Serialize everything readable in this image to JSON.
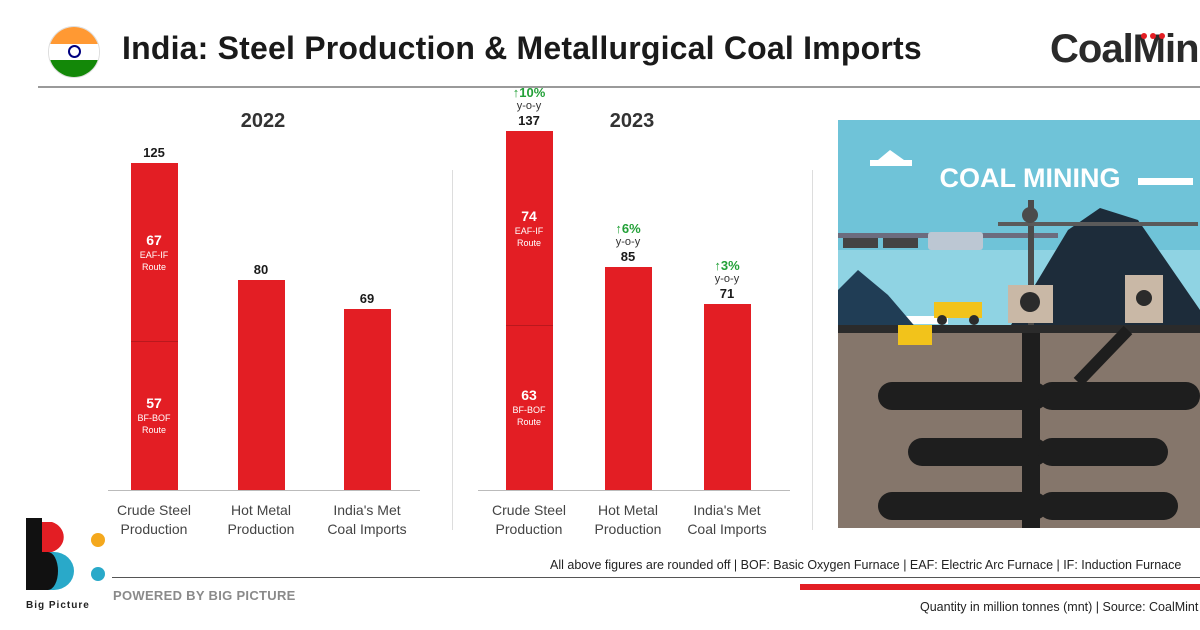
{
  "header": {
    "title": "India: Steel Production & Metallurgical Coal Imports",
    "brand": "CoalMin"
  },
  "colors": {
    "bar": "#e31e24",
    "yoy": "#22a037",
    "accent": "#e31e24"
  },
  "chart_data": [
    {
      "type": "bar",
      "title": "2022",
      "categories": [
        "Crude Steel Production",
        "Hot Metal Production",
        "India's Met Coal Imports"
      ],
      "values": [
        125,
        80,
        69
      ],
      "breakdown": [
        {
          "category": "Crude Steel Production",
          "segments": [
            {
              "value": 57,
              "label": "BF-BOF Route"
            },
            {
              "value": 67,
              "label": "EAF-IF Route"
            }
          ]
        }
      ]
    },
    {
      "type": "bar",
      "title": "2023",
      "categories": [
        "Crude Steel Production",
        "Hot Metal Production",
        "India's Met Coal Imports"
      ],
      "values": [
        137,
        85,
        71
      ],
      "yoy": [
        "10%",
        "6%",
        "3%"
      ],
      "yoy_label": "y-o-y",
      "breakdown": [
        {
          "category": "Crude Steel Production",
          "segments": [
            {
              "value": 63,
              "label": "BF-BOF Route"
            },
            {
              "value": 74,
              "label": "EAF-IF Route"
            }
          ]
        }
      ]
    }
  ],
  "charts_text": {
    "c2022": {
      "year": "2022",
      "cats": [
        [
          "Crude Steel",
          "Production"
        ],
        [
          "Hot Metal",
          "Production"
        ],
        [
          "India's Met",
          "Coal Imports"
        ]
      ],
      "vals": [
        "125",
        "80",
        "69"
      ],
      "seg_top": {
        "value": "67",
        "l1": "EAF-IF",
        "l2": "Route"
      },
      "seg_bottom": {
        "value": "57",
        "l1": "BF-BOF",
        "l2": "Route"
      }
    },
    "c2023": {
      "year": "2023",
      "cats": [
        [
          "Crude Steel",
          "Production"
        ],
        [
          "Hot Metal",
          "Production"
        ],
        [
          "India's Met",
          "Coal Imports"
        ]
      ],
      "vals": [
        "137",
        "85",
        "71"
      ],
      "yoy": [
        "10%",
        "6%",
        "3%"
      ],
      "yoy_label": "y-o-y",
      "seg_top": {
        "value": "74",
        "l1": "EAF-IF",
        "l2": "Route"
      },
      "seg_bottom": {
        "value": "63",
        "l1": "BF-BOF",
        "l2": "Route"
      }
    }
  },
  "illustration": {
    "title": "COAL MINING"
  },
  "footer": {
    "note": "All above figures are rounded off | BOF: Basic Oxygen Furnace | EAF: Electric Arc Furnace | IF: Induction Furnace",
    "powered": "POWERED BY BIG PICTURE",
    "source": "Quantity in million tonnes (mnt) | Source: CoalMint",
    "logo_text": "Big Picture"
  }
}
